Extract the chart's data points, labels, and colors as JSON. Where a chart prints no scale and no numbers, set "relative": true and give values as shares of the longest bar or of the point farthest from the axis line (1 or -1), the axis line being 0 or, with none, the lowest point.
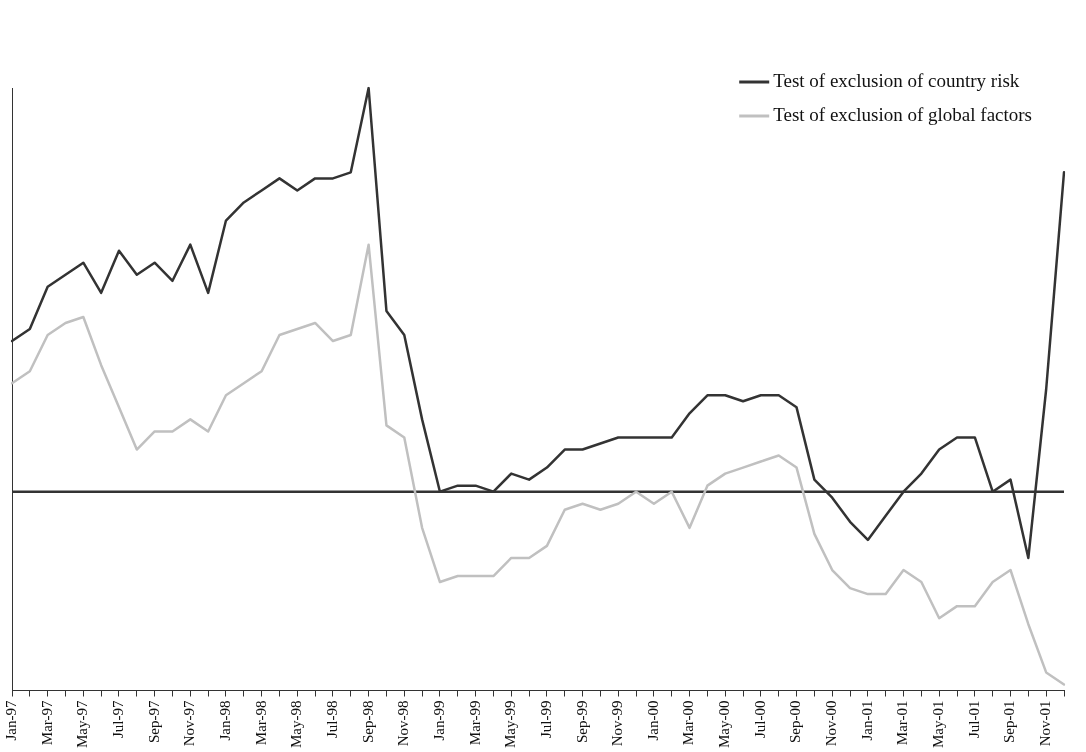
{
  "chart_data": {
    "type": "line",
    "relative": true,
    "tick_labels": "x",
    "grid": false,
    "legend": "top right",
    "marker": "none",
    "line_style": "solid",
    "categories": [
      "Jan-97",
      null,
      "Mar-97",
      null,
      "May-97",
      null,
      "Jul-97",
      null,
      "Sep-97",
      null,
      "Nov-97",
      null,
      "Jan-98",
      null,
      "Mar-98",
      null,
      "May-98",
      null,
      "Jul-98",
      null,
      "Sep-98",
      null,
      "Nov-98",
      null,
      "Jan-99",
      null,
      "Mar-99",
      null,
      "May-99",
      null,
      "Jul-99",
      null,
      "Sep-99",
      null,
      "Nov-99",
      null,
      "Jan-00",
      null,
      "Mar-00",
      null,
      "May-00",
      null,
      "Jul-00",
      null,
      "Sep-00",
      null,
      "Nov-00",
      null,
      "Jan-01",
      null,
      "Mar-01",
      null,
      "May-01",
      null,
      "Jul-01",
      null,
      "Sep-01",
      null,
      "Nov-01",
      null
    ],
    "series": [
      {
        "name": "Test of exclusion of country risk",
        "color": "#333333",
        "values": [
          0.58,
          0.6,
          0.67,
          0.69,
          0.71,
          0.66,
          0.73,
          0.69,
          0.71,
          0.68,
          0.74,
          0.66,
          0.78,
          0.81,
          0.83,
          0.85,
          0.83,
          0.85,
          0.85,
          0.86,
          1,
          0.63,
          0.59,
          0.45,
          0.33,
          0.34,
          0.34,
          0.33,
          0.36,
          0.35,
          0.37,
          0.4,
          0.4,
          0.41,
          0.42,
          0.42,
          0.42,
          0.42,
          0.46,
          0.49,
          0.49,
          0.48,
          0.49,
          0.49,
          0.47,
          0.35,
          0.32,
          0.28,
          0.25,
          0.29,
          0.33,
          0.36,
          0.4,
          0.42,
          0.42,
          0.33,
          0.35,
          0.22,
          0.5,
          0.86
        ]
      },
      {
        "name": "Test of exclusion of global factors",
        "color": "#c0c0c0",
        "values": [
          0.51,
          0.53,
          0.59,
          0.61,
          0.62,
          0.54,
          0.47,
          0.4,
          0.43,
          0.43,
          0.45,
          0.43,
          0.49,
          0.51,
          0.53,
          0.59,
          0.6,
          0.61,
          0.58,
          0.59,
          0.74,
          0.44,
          0.42,
          0.27,
          0.18,
          0.19,
          0.19,
          0.19,
          0.22,
          0.22,
          0.24,
          0.3,
          0.31,
          0.3,
          0.31,
          0.33,
          0.31,
          0.33,
          0.27,
          0.34,
          0.36,
          0.37,
          0.38,
          0.39,
          0.37,
          0.26,
          0.2,
          0.17,
          0.16,
          0.16,
          0.2,
          0.18,
          0.12,
          0.14,
          0.14,
          0.18,
          0.2,
          0.11,
          0.03,
          0.01
        ]
      }
    ],
    "ref_lines": [
      {
        "axis": "y",
        "value": 0.33,
        "color": "#333333"
      }
    ]
  }
}
